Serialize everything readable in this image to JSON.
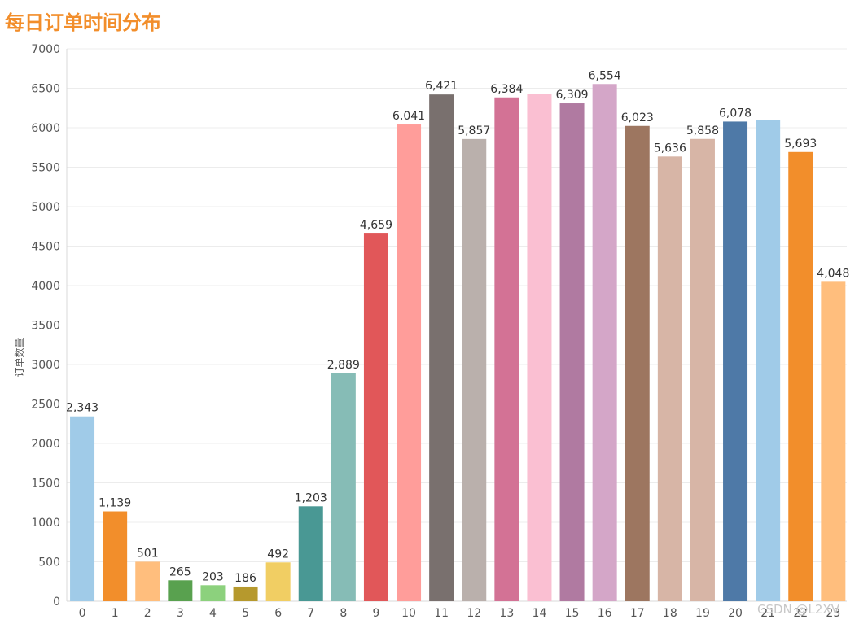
{
  "chart_data": {
    "type": "bar",
    "title": "每日订单时间分布",
    "xlabel": "",
    "ylabel": "订单数量",
    "ylim": [
      0,
      7000
    ],
    "yticks": [
      0,
      500,
      1000,
      1500,
      2000,
      2500,
      3000,
      3500,
      4000,
      4500,
      5000,
      5500,
      6000,
      6500,
      7000
    ],
    "categories": [
      "0",
      "1",
      "2",
      "3",
      "4",
      "5",
      "6",
      "7",
      "8",
      "9",
      "10",
      "11",
      "12",
      "13",
      "14",
      "15",
      "16",
      "17",
      "18",
      "19",
      "20",
      "21",
      "22",
      "23"
    ],
    "values": [
      2343,
      1139,
      501,
      265,
      203,
      186,
      492,
      1203,
      2889,
      4659,
      6041,
      6421,
      5857,
      6384,
      6425,
      6309,
      6554,
      6023,
      5636,
      5858,
      6078,
      6100,
      5693,
      4048
    ],
    "data_labels": [
      "2,343",
      "1,139",
      "501",
      "265",
      "203",
      "186",
      "492",
      "1,203",
      "2,889",
      "4,659",
      "6,041",
      "6,421",
      "5,857",
      "6,384",
      "",
      "6,309",
      "6,554",
      "6,023",
      "5,636",
      "5,858",
      "6,078",
      "",
      "5,693",
      "4,048"
    ],
    "colors": [
      "#a0cbe8",
      "#f28e2b",
      "#ffbe7d",
      "#59a14f",
      "#8cd17d",
      "#b6992d",
      "#f1ce63",
      "#499894",
      "#86bcb6",
      "#e15759",
      "#ff9d9a",
      "#79706e",
      "#bab0ac",
      "#d37295",
      "#fabfd2",
      "#b07aa1",
      "#d4a6c8",
      "#9d7660",
      "#d7b5a6",
      "#d7b5a6",
      "#4e79a7",
      "#a0cbe8",
      "#f28e2b",
      "#ffbe7d"
    ],
    "grid": true
  },
  "watermark": "CSDN @L2XV"
}
